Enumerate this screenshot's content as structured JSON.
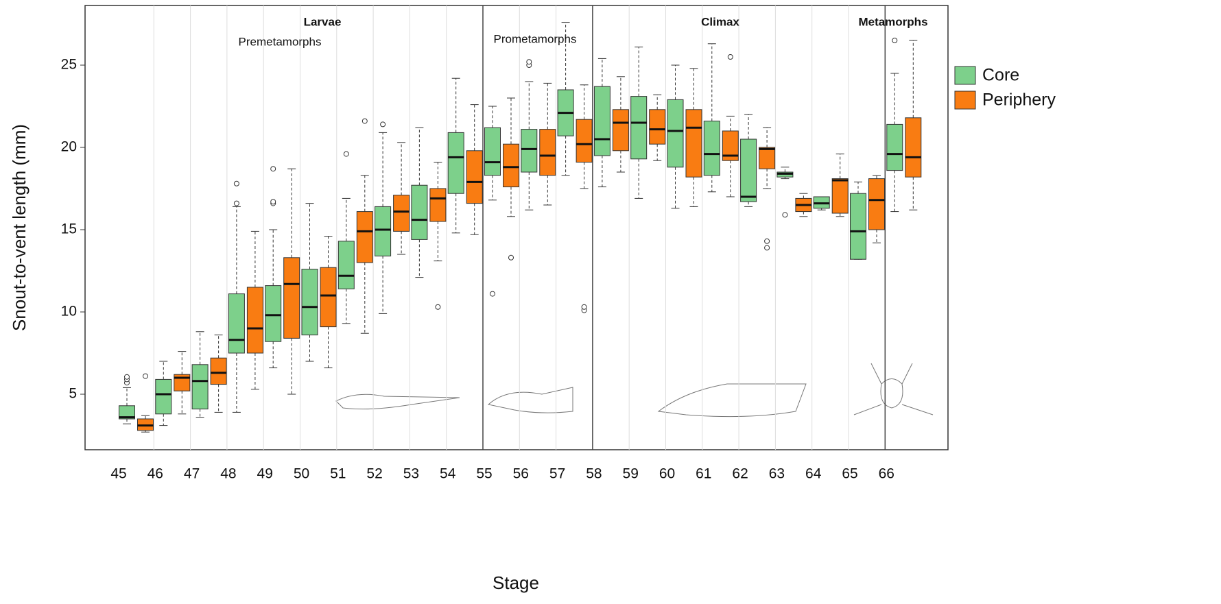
{
  "chart_data": {
    "type": "boxplot",
    "x_label": "Stage",
    "y_label": "Snout-to-vent length (mm)",
    "categories": [
      "45",
      "46",
      "47",
      "48",
      "49",
      "50",
      "51",
      "52",
      "53",
      "54",
      "55",
      "56",
      "57",
      "58",
      "59",
      "60",
      "61",
      "62",
      "63",
      "64",
      "65",
      "66"
    ],
    "ylim": [
      1.625,
      28.625
    ],
    "yticks": [
      5,
      10,
      15,
      20,
      25
    ],
    "annotations": [
      {
        "text": "Larvae",
        "bold": true
      },
      {
        "text": "Premetamorphs",
        "bold": false
      },
      {
        "text": "Prometamorphs",
        "bold": false
      },
      {
        "text": "Climax",
        "bold": true
      },
      {
        "text": "Metamorphs",
        "bold": true
      }
    ],
    "series": [
      {
        "name": "Core",
        "color": "#7dd08b",
        "min": [
          3.2,
          3.1,
          3.6,
          3.9,
          6.6,
          7.0,
          9.3,
          9.9,
          12.1,
          14.8,
          16.8,
          16.2,
          18.3,
          17.6,
          16.9,
          16.3,
          17.3,
          16.4,
          18.1,
          16.2,
          13.2,
          16.1
        ],
        "q1": [
          3.5,
          3.8,
          4.1,
          7.5,
          8.2,
          8.6,
          11.4,
          13.4,
          14.4,
          17.2,
          18.3,
          18.5,
          20.7,
          19.5,
          19.3,
          18.8,
          18.3,
          16.7,
          18.2,
          16.3,
          13.2,
          18.6
        ],
        "median": [
          3.6,
          5.0,
          5.8,
          8.3,
          9.8,
          10.3,
          12.2,
          15.0,
          15.6,
          19.4,
          19.1,
          19.9,
          22.1,
          20.5,
          21.5,
          21.0,
          19.6,
          17.0,
          18.4,
          16.6,
          14.9,
          19.6
        ],
        "q3": [
          4.3,
          5.9,
          6.8,
          11.1,
          11.6,
          12.6,
          14.3,
          16.4,
          17.7,
          20.9,
          21.2,
          21.1,
          23.5,
          23.7,
          23.1,
          22.9,
          21.6,
          20.5,
          18.5,
          17.0,
          17.2,
          21.4
        ],
        "max": [
          5.4,
          7.0,
          8.8,
          16.4,
          15.0,
          16.6,
          16.9,
          20.9,
          21.2,
          24.2,
          22.5,
          24.0,
          27.6,
          25.4,
          26.1,
          25.0,
          26.3,
          22.0,
          18.8,
          17.0,
          17.9,
          24.5
        ],
        "outliers": [
          [
            5.7,
            5.9,
            6.05
          ],
          [],
          [],
          [
            16.6,
            17.8
          ],
          [
            16.6,
            16.7,
            18.7
          ],
          [],
          [
            19.6
          ],
          [
            21.4
          ],
          [],
          [],
          [
            11.1
          ],
          [
            25.0,
            25.2
          ],
          [],
          [],
          [],
          [],
          [],
          [],
          [
            15.9
          ],
          [],
          [],
          [
            26.5
          ]
        ]
      },
      {
        "name": "Periphery",
        "color": "#f97c12",
        "min": [
          2.7,
          3.8,
          3.9,
          5.3,
          5.0,
          6.6,
          8.7,
          13.5,
          13.1,
          14.7,
          15.8,
          16.5,
          17.5,
          18.5,
          19.2,
          16.4,
          17.0,
          17.5,
          15.8,
          15.8,
          14.2,
          16.2
        ],
        "q1": [
          2.8,
          5.2,
          5.6,
          7.5,
          8.4,
          9.1,
          13.0,
          14.9,
          15.5,
          16.6,
          17.6,
          18.3,
          19.1,
          19.8,
          20.2,
          18.2,
          19.2,
          18.7,
          16.1,
          16.0,
          15.0,
          18.2
        ],
        "median": [
          3.1,
          6.0,
          6.3,
          9.0,
          11.7,
          11.0,
          14.9,
          16.1,
          16.9,
          17.9,
          18.8,
          19.5,
          20.2,
          21.5,
          21.1,
          21.2,
          19.5,
          19.9,
          16.5,
          18.0,
          16.8,
          19.4
        ],
        "q3": [
          3.5,
          6.2,
          7.2,
          11.5,
          13.3,
          12.7,
          16.1,
          17.1,
          17.5,
          19.8,
          20.2,
          21.1,
          21.7,
          22.3,
          22.3,
          22.3,
          21.0,
          20.0,
          16.9,
          18.1,
          18.1,
          21.8
        ],
        "max": [
          3.7,
          7.6,
          8.6,
          14.9,
          18.7,
          14.6,
          18.3,
          20.3,
          19.1,
          22.6,
          23.0,
          23.9,
          23.8,
          24.3,
          23.2,
          24.8,
          21.9,
          21.2,
          17.2,
          19.6,
          18.3,
          26.5
        ],
        "outliers": [
          [
            6.1
          ],
          [],
          [],
          [],
          [],
          [],
          [
            21.6
          ],
          [],
          [
            10.3
          ],
          [],
          [
            13.3
          ],
          [],
          [
            10.1,
            10.3
          ],
          [],
          [],
          [],
          [
            25.5
          ],
          [
            13.9,
            14.3
          ],
          [],
          [],
          [],
          []
        ]
      }
    ]
  }
}
